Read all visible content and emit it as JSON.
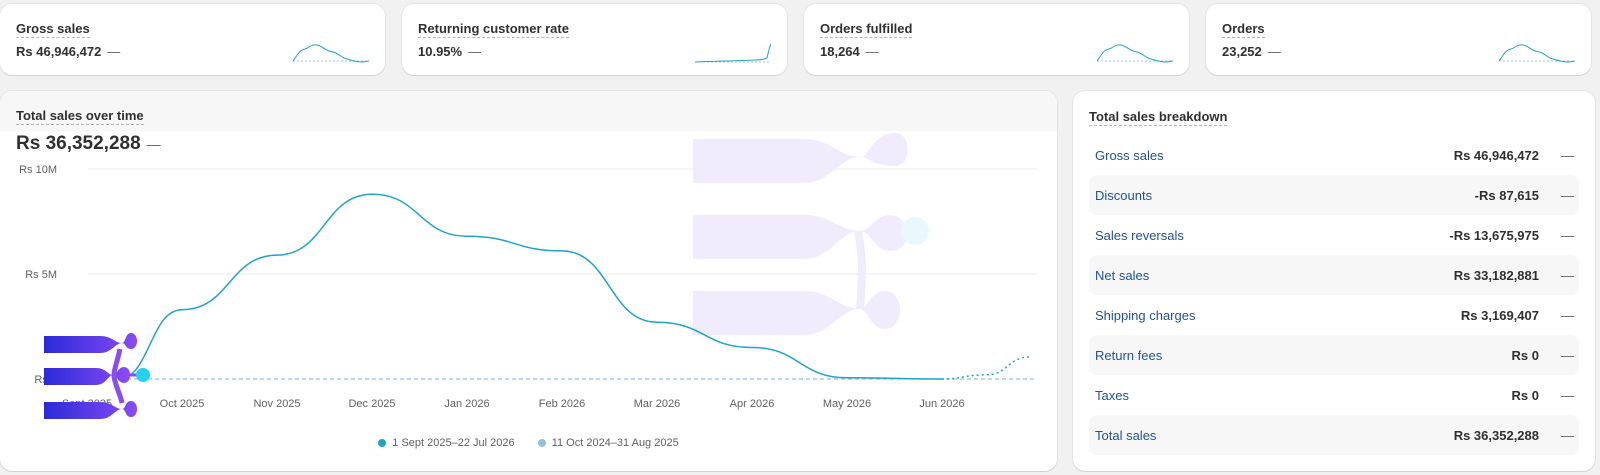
{
  "kpis": [
    {
      "title": "Gross sales",
      "value": "Rs 46,946,472",
      "dash": "—"
    },
    {
      "title": "Returning customer rate",
      "value": "10.95%",
      "dash": "—"
    },
    {
      "title": "Orders fulfilled",
      "value": "18,264",
      "dash": "—"
    },
    {
      "title": "Orders",
      "value": "23,252",
      "dash": "—"
    }
  ],
  "main": {
    "title": "Total sales over time",
    "value": "Rs 36,352,288",
    "dash": "—"
  },
  "chart_data": {
    "type": "line",
    "categories": [
      "Sept 2025",
      "Oct 2025",
      "Nov 2025",
      "Dec 2025",
      "Jan 2026",
      "Feb 2026",
      "Mar 2026",
      "Apr 2026",
      "May 2026",
      "Jun 2026"
    ],
    "y_tick_labels": [
      "Rs 10M",
      "Rs 5M",
      "Rs 0"
    ],
    "ylim": [
      0,
      10000000
    ],
    "series": [
      {
        "name": "1 Sept 2025–22 Jul 2026",
        "color": "#1fa3cc",
        "values": [
          0,
          3300000,
          5900000,
          8800000,
          6800000,
          6100000,
          2700000,
          1500000,
          60000,
          0
        ],
        "projection": [
          0,
          200000,
          1050000
        ]
      },
      {
        "name": "11 Oct 2024–31 Aug 2025",
        "color": "#91c4dc",
        "values": [
          0,
          0,
          0,
          0,
          0,
          0,
          0,
          0,
          0,
          0
        ]
      }
    ],
    "grid": true,
    "legend": "bottom"
  },
  "breakdown": {
    "title": "Total sales breakdown",
    "rows": [
      {
        "label": "Gross sales",
        "value": "Rs 46,946,472",
        "dash": "—"
      },
      {
        "label": "Discounts",
        "value": "-Rs 87,615",
        "dash": "—"
      },
      {
        "label": "Sales reversals",
        "value": "-Rs 13,675,975",
        "dash": "—"
      },
      {
        "label": "Net sales",
        "value": "Rs 33,182,881",
        "dash": "—"
      },
      {
        "label": "Shipping charges",
        "value": "Rs 3,169,407",
        "dash": "—"
      },
      {
        "label": "Return fees",
        "value": "Rs 0",
        "dash": "—"
      },
      {
        "label": "Taxes",
        "value": "Rs 0",
        "dash": "—"
      },
      {
        "label": "Total sales",
        "value": "Rs 36,352,288",
        "dash": "—"
      }
    ]
  },
  "colors": {
    "accent": "#1fa3cc",
    "link": "#1f5199",
    "comparison": "#91c4dc",
    "logo_purple": "#8b4bf5",
    "logo_blue": "#2a2ad8"
  },
  "icons": {
    "overlay_logo": "flow-logo-icon",
    "watermark": "flow-watermark-icon"
  }
}
